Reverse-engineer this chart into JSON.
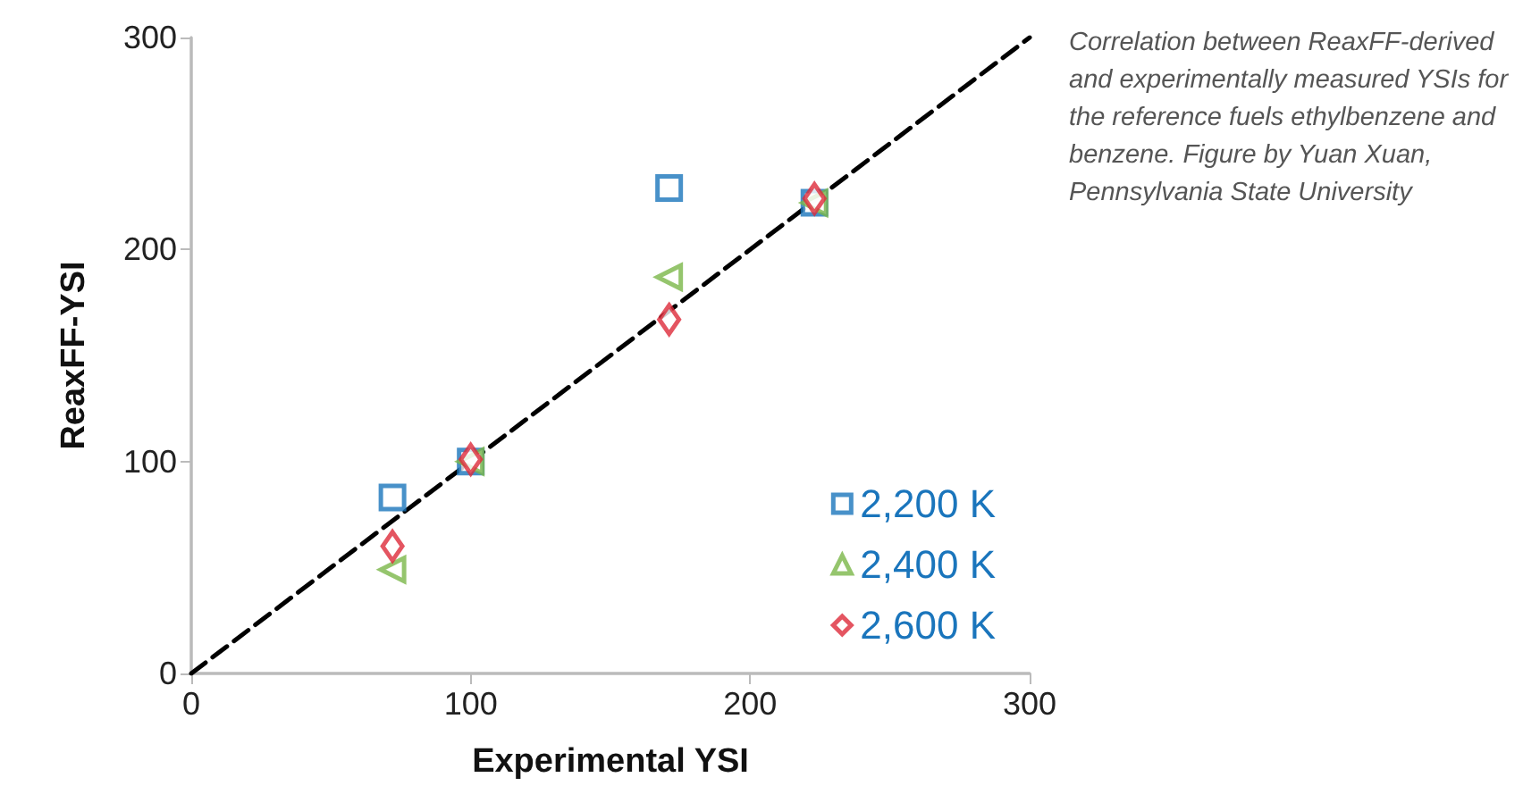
{
  "chart_data": {
    "type": "scatter",
    "xlabel": "Experimental YSI",
    "ylabel": "ReaxFF-YSI",
    "annotations": [
      "Correlation between ReaxFF-derived and experimentally measured YSIs for the reference fuels ethylbenzene and benzene. Figure by Yuan Xuan, Pennsylvania State University"
    ],
    "x": [
      72,
      100,
      171,
      223
    ],
    "series": [
      {
        "name": "2,200 K",
        "color": "#1a75bc",
        "marker": "square",
        "values": [
          83,
          100,
          229,
          222
        ]
      },
      {
        "name": "2,400 K",
        "color": "#7ab648",
        "marker": "triangle",
        "values": [
          49,
          100,
          187,
          222
        ]
      },
      {
        "name": "2,600 K",
        "color": "#dd2a3a",
        "marker": "diamond",
        "values": [
          60,
          101,
          167,
          224
        ]
      },
      {
        "type": "line",
        "color": "#000000",
        "line_style": "dashed",
        "marker": "none",
        "x": [
          0,
          300
        ],
        "values": [
          0,
          300
        ]
      }
    ],
    "xlim": [
      0,
      300
    ],
    "xticks": [
      0,
      100,
      200,
      300
    ],
    "ylim": [
      0,
      300
    ],
    "yticks": [
      0,
      100,
      200,
      300
    ],
    "grid": false,
    "legend": "bottom right"
  }
}
